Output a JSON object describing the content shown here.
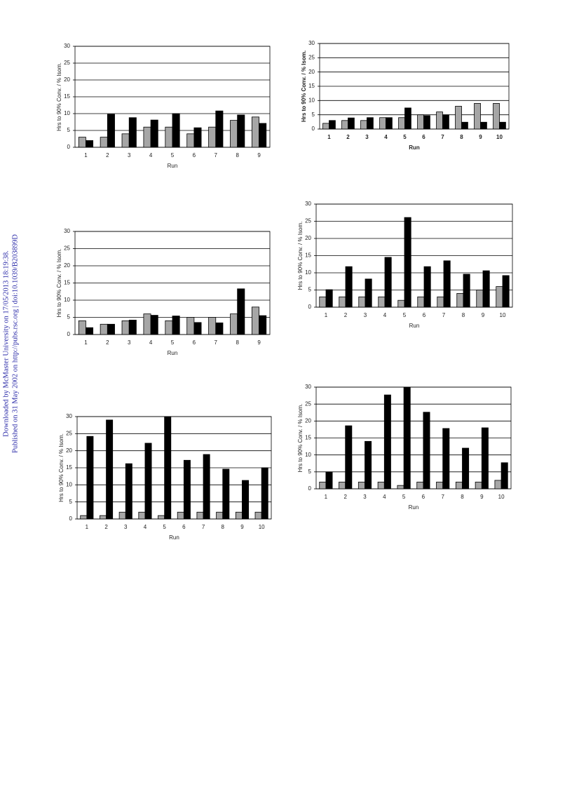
{
  "sidebar": [
    "Downloaded by McMaster University on 17/05/2013 18:19:38.",
    "Published on 31 May 2002 on http://pubs.rsc.org | doi:10.1039/B203899D"
  ],
  "chart_data": [
    {
      "type": "bar",
      "x_label": "Run",
      "y_label": "Hrs to 90% Conv. / % Isom.",
      "categories": [
        "1",
        "2",
        "3",
        "4",
        "5",
        "6",
        "7",
        "8",
        "9"
      ],
      "series": [
        {
          "color": "#a6a6a6",
          "values": [
            3,
            3,
            4,
            6,
            6,
            4,
            6,
            8,
            9
          ]
        },
        {
          "color": "#000000",
          "values": [
            2,
            9.8,
            8.8,
            8.1,
            10,
            5.8,
            10.8,
            9.6,
            7.1
          ]
        }
      ],
      "ylim": [
        0,
        30
      ],
      "yticks": [
        0,
        5,
        10,
        15,
        20,
        25,
        30
      ],
      "grid": true
    },
    {
      "type": "bar",
      "x_label": "Run",
      "y_label": "Hrs to 90% Conv. / % Isom.",
      "categories": [
        "1",
        "2",
        "3",
        "4",
        "5",
        "6",
        "7",
        "8",
        "9",
        "10"
      ],
      "series": [
        {
          "color": "#a6a6a6",
          "values": [
            2,
            3,
            3,
            4,
            4,
            5,
            6,
            8,
            9,
            9
          ]
        },
        {
          "color": "#000000",
          "values": [
            3,
            3.9,
            4,
            4,
            7.4,
            4.7,
            5,
            2.4,
            2.4,
            2.4
          ]
        }
      ],
      "ylim": [
        0,
        30
      ],
      "yticks": [
        0,
        5,
        10,
        15,
        20,
        25,
        30
      ],
      "grid": true
    },
    {
      "type": "bar",
      "x_label": "Run",
      "y_label": "Hrs to 90% Conv. / % Isom.",
      "categories": [
        "1",
        "2",
        "3",
        "4",
        "5",
        "6",
        "7",
        "8",
        "9",
        "10"
      ],
      "series": [
        {
          "color": "#a6a6a6",
          "values": [
            3,
            3,
            3,
            3,
            2,
            3,
            3,
            4,
            5,
            6
          ]
        },
        {
          "color": "#000000",
          "values": [
            5.1,
            11.8,
            8.2,
            14.5,
            26.1,
            11.8,
            13.5,
            9.6,
            10.6,
            9.2
          ]
        }
      ],
      "ylim": [
        0,
        30
      ],
      "yticks": [
        0,
        5,
        10,
        15,
        20,
        25,
        30
      ],
      "grid": true
    },
    {
      "type": "bar",
      "x_label": "Run",
      "y_label": "Hrs to 90% Conv. / % Isom.",
      "categories": [
        "1",
        "2",
        "3",
        "4",
        "5",
        "6",
        "7",
        "8",
        "9"
      ],
      "series": [
        {
          "color": "#a6a6a6",
          "values": [
            4,
            3,
            4,
            6,
            4,
            5,
            5,
            6,
            8
          ]
        },
        {
          "color": "#000000",
          "values": [
            2,
            3,
            4.2,
            5.6,
            5.4,
            3.5,
            3.4,
            13.3,
            5.5
          ]
        }
      ],
      "ylim": [
        0,
        30
      ],
      "yticks": [
        0,
        5,
        10,
        15,
        20,
        25,
        30
      ],
      "grid": true
    },
    {
      "type": "bar",
      "x_label": "Run",
      "y_label": "Hrs to 90% Conv. / % Isom.",
      "categories": [
        "1",
        "2",
        "3",
        "4",
        "5",
        "6",
        "7",
        "8",
        "9",
        "10"
      ],
      "series": [
        {
          "color": "#a6a6a6",
          "values": [
            1,
            1,
            2,
            2,
            1,
            2,
            2,
            2,
            2,
            2
          ]
        },
        {
          "color": "#000000",
          "values": [
            24.2,
            29,
            16.2,
            22.2,
            30,
            17.2,
            18.9,
            14.6,
            11.3,
            15
          ]
        }
      ],
      "ylim": [
        0,
        30
      ],
      "yticks": [
        0,
        5,
        10,
        15,
        20,
        25,
        30
      ],
      "grid": true
    },
    {
      "type": "bar",
      "x_label": "Run",
      "y_label": "Hrs to 90% Conv. / % Isom.",
      "categories": [
        "1",
        "2",
        "3",
        "4",
        "5",
        "6",
        "7",
        "8",
        "9",
        "10"
      ],
      "series": [
        {
          "color": "#a6a6a6",
          "values": [
            2,
            2,
            2,
            2,
            1,
            2,
            2,
            2,
            2,
            2.5
          ]
        },
        {
          "color": "#000000",
          "values": [
            5,
            18.6,
            14,
            27.7,
            30,
            22.6,
            17.8,
            12,
            18,
            7.7
          ]
        }
      ],
      "ylim": [
        0,
        30
      ],
      "yticks": [
        0,
        5,
        10,
        15,
        20,
        25,
        30
      ],
      "grid": true
    }
  ]
}
